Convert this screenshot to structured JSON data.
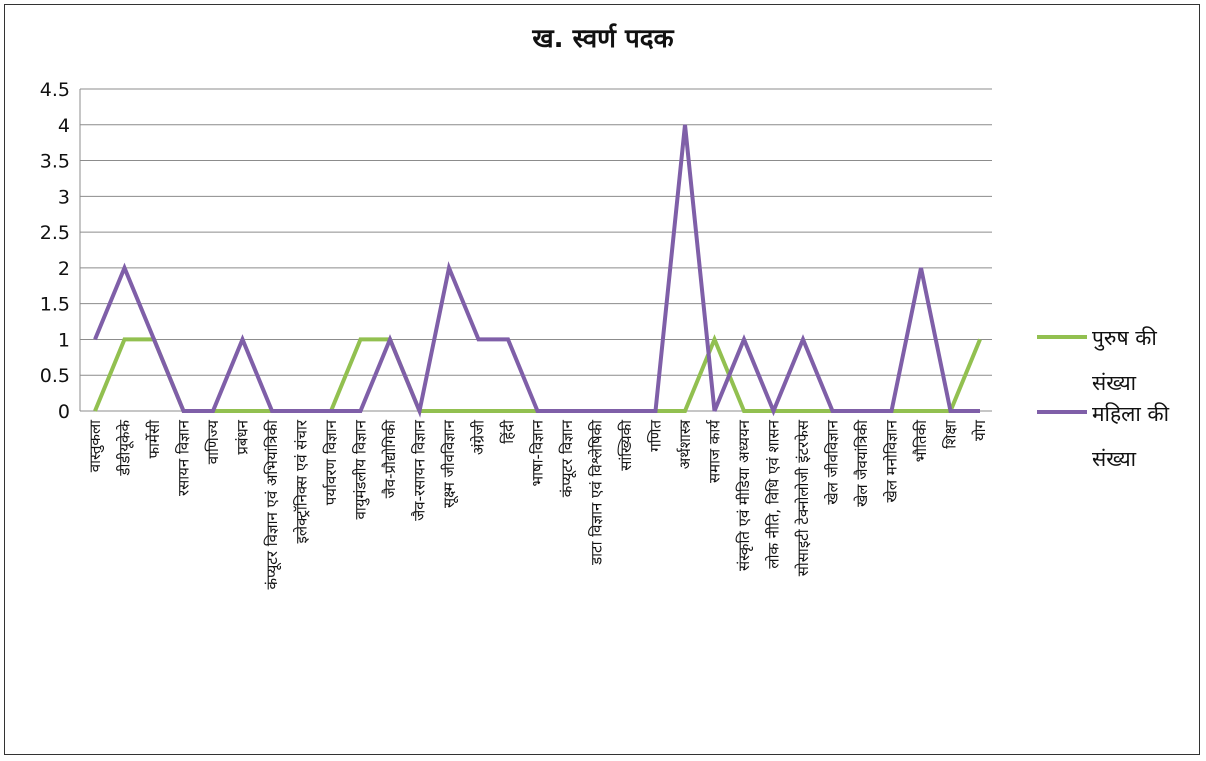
{
  "chart_data": {
    "type": "line",
    "title": "ख. स्वर्ण पदक",
    "xlabel": "",
    "ylabel": "",
    "ylim": [
      0,
      4.5
    ],
    "yticks": [
      "0",
      "0.5",
      "1",
      "1.5",
      "2",
      "2.5",
      "3",
      "3.5",
      "4",
      "4.5"
    ],
    "grid": true,
    "legend_position": "right",
    "categories": [
      "वास्तुकला",
      "डीडीयूकेके",
      "फार्मेसी",
      "रसायन विज्ञान",
      "वाणिज्य",
      "प्रबंधन",
      "कंप्यूटर विज्ञान एवं अभियांत्रिकी",
      "इलेक्ट्रॉनिक्स एवं संचार",
      "पर्यावरण विज्ञान",
      "वायुमंडलीय विज्ञान",
      "जैव-प्रौद्योगिकी",
      "जैव-रसायन विज्ञान",
      "सूक्ष्म जीवविज्ञान",
      "अंग्रेजी",
      "हिंदी",
      "भाषा-विज्ञान",
      "कंप्यूटर विज्ञान",
      "डाटा विज्ञान एवं विश्लेषिकी",
      "सांख्यिकी",
      "गणित",
      "अर्थशास्त्र",
      "समाज कार्य",
      "संस्कृति एवं मीडिया अध्ययन",
      "लोक नीति, विधि एवं शासन",
      "सोसाइटी टेक्नोलोजी इंटरफेस",
      "खेल जीवविज्ञान",
      "खेल जैवयांत्रिकी",
      "खेल मनोविज्ञान",
      "भौतिकी",
      "शिक्षा",
      "योग"
    ],
    "series": [
      {
        "name": "पुरुष की संख्या",
        "color": "#92c050",
        "values": [
          0,
          1,
          1,
          0,
          0,
          0,
          0,
          0,
          0,
          1,
          1,
          0,
          0,
          0,
          0,
          0,
          0,
          0,
          0,
          0,
          0,
          1,
          0,
          0,
          0,
          0,
          0,
          0,
          0,
          0,
          1
        ]
      },
      {
        "name": "महिला की संख्या",
        "color": "#7f5fa8",
        "values": [
          1,
          2,
          1,
          0,
          0,
          1,
          0,
          0,
          0,
          0,
          1,
          0,
          2,
          1,
          1,
          0,
          0,
          0,
          0,
          0,
          4,
          0,
          1,
          0,
          1,
          0,
          0,
          0,
          2,
          0,
          0
        ]
      }
    ]
  }
}
